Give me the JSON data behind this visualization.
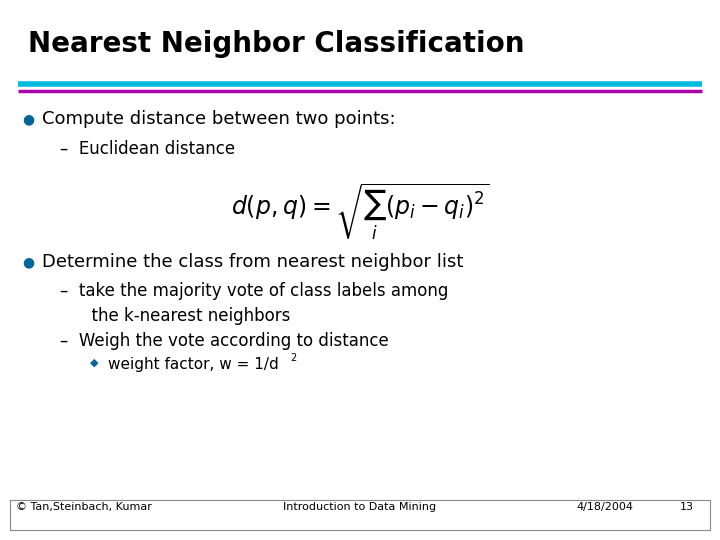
{
  "title": "Nearest Neighbor Classification",
  "title_fontsize": 20,
  "bg_color": "#ffffff",
  "line1_color": "#00BBDD",
  "line2_color": "#AA00AA",
  "bullet_color": "#006699",
  "bullet1_text": "Compute distance between two points:",
  "sub1_text": "–  Euclidean distance",
  "formula": "$d(p,q) = \\sqrt{\\sum_{i}(p_i - q_i)^2}$",
  "bullet2_text": "Determine the class from nearest neighbor list",
  "sub2a_text": "–  take the majority vote of class labels among",
  "sub2a_cont": "      the k-nearest neighbors",
  "sub2b_text": "–  Weigh the vote according to distance",
  "footer_left": "© Tan,Steinbach, Kumar",
  "footer_center": "Introduction to Data Mining",
  "footer_right": "4/18/2004",
  "footer_page": "13",
  "body_fontsize": 13,
  "sub_fontsize": 12,
  "footer_fontsize": 8,
  "formula_fontsize": 17
}
